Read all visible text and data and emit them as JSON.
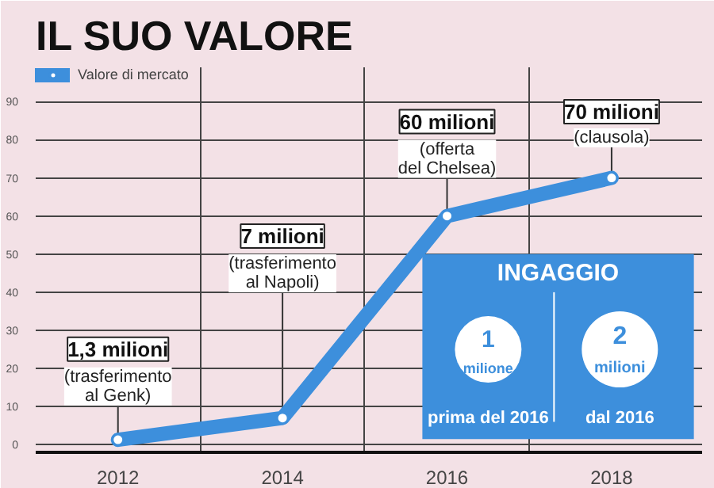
{
  "chart_data": {
    "type": "line",
    "title": "IL SUO VALORE",
    "categories": [
      "2012",
      "2014",
      "2016",
      "2018"
    ],
    "series": [
      {
        "name": "Valore di mercato",
        "color": "#3d8fdc",
        "values": [
          1.3,
          7,
          60,
          70
        ]
      }
    ],
    "ylim": [
      -2,
      99
    ],
    "yticks": [
      0,
      10,
      20,
      30,
      40,
      50,
      60,
      70,
      80,
      90
    ],
    "grid": true,
    "legend": "top left",
    "marker": "circle",
    "line_style": "solid",
    "annotations": [
      {
        "text": "1,3 milioni\n(trasferimento\nal Genk)",
        "x": "2012",
        "y": 1.3
      },
      {
        "text": "7 milioni\n(trasferimento\nal Napoli)",
        "x": "2014",
        "y": 7
      },
      {
        "text": "60 milioni\n(offerta\ndel Chelsea)",
        "x": "2016",
        "y": 60
      },
      {
        "text": "70 milioni\n(clausola)",
        "x": "2018",
        "y": 70
      },
      "INGAGGIO",
      "1",
      "milione",
      "prima del 2016",
      "2",
      "milioni",
      "dal 2016"
    ]
  }
}
